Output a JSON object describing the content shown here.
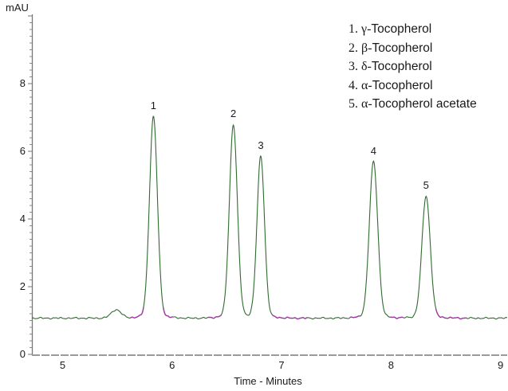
{
  "legend": {
    "items": [
      {
        "prefix": "1. γ-",
        "name": "Tocopherol"
      },
      {
        "prefix": "2. β-",
        "name": "Tocopherol"
      },
      {
        "prefix": "3. δ-",
        "name": "Tocopherol"
      },
      {
        "prefix": "4. α-",
        "name": "Tocopherol"
      },
      {
        "prefix": "5. α-",
        "name": "Tocopherol acetate"
      }
    ]
  },
  "chart_data": {
    "type": "line",
    "subtype": "chromatogram",
    "title": "",
    "xlabel": "Time - Minutes",
    "ylabel": "mAU",
    "xlim": [
      4.72,
      9.06
    ],
    "ylim": [
      0,
      10.05
    ],
    "x_ticks": [
      5,
      6,
      7,
      8,
      9
    ],
    "y_ticks": [
      0,
      2,
      4,
      6,
      8
    ],
    "grid": false,
    "legend_position": "top-right",
    "baseline_mAU": 1.07,
    "peaks": [
      {
        "label": "1",
        "name": "γ-Tocopherol",
        "time_min": 5.83,
        "apex_mAU": 7.03,
        "sigma_min": 0.036
      },
      {
        "label": "2",
        "name": "β-Tocopherol",
        "time_min": 6.56,
        "apex_mAU": 6.79,
        "sigma_min": 0.036
      },
      {
        "label": "3",
        "name": "δ-Tocopherol",
        "time_min": 6.81,
        "apex_mAU": 5.86,
        "sigma_min": 0.034
      },
      {
        "label": "4",
        "name": "α-Tocopherol",
        "time_min": 7.84,
        "apex_mAU": 5.7,
        "sigma_min": 0.038
      },
      {
        "label": "5",
        "name": "α-Tocopherol acetate",
        "time_min": 8.32,
        "apex_mAU": 4.68,
        "sigma_min": 0.038
      }
    ],
    "artifact_bump": {
      "time_min": 5.49,
      "apex_mAU": 1.32,
      "sigma_min": 0.045
    },
    "integration_mark_intervals_min": [
      [
        5.62,
        5.74
      ],
      [
        5.92,
        6.01
      ],
      [
        6.33,
        6.45
      ],
      [
        6.92,
        7.24
      ],
      [
        7.63,
        7.72
      ],
      [
        7.99,
        8.11
      ],
      [
        8.41,
        8.69
      ]
    ],
    "colors": {
      "trace": "#2f6b2f",
      "integration_marks": "#a03aa0",
      "axis": "#9a9a9a",
      "tick": "#8c8c8c",
      "text": "#1a1a1a"
    }
  }
}
